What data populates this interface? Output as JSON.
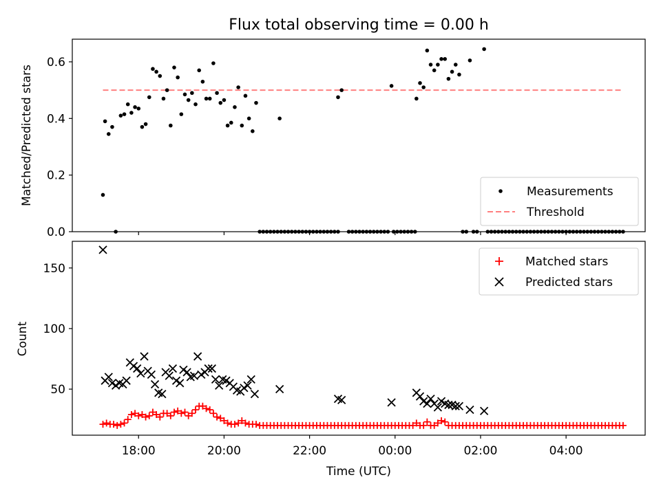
{
  "chart_data": [
    {
      "type": "scatter",
      "title": "Flux total observing time = 0.00 h",
      "xlabel": "",
      "ylabel": "Matched/Predicted stars",
      "xlim": [
        "16:27",
        "05:51"
      ],
      "ylim": [
        0,
        0.68
      ],
      "xticks": [
        "18:00",
        "20:00",
        "22:00",
        "00:00",
        "02:00",
        "04:00"
      ],
      "xtick_labels_shown": false,
      "yticks": [
        "0.0",
        "0.2",
        "0.4",
        "0.6"
      ],
      "grid": false,
      "legend": {
        "position": "lower right",
        "entries": [
          "Measurements",
          "Threshold"
        ]
      },
      "threshold": {
        "name": "Threshold",
        "value": 0.5,
        "color": "#ff7f7f",
        "style": "dashed",
        "x_start": "17:10",
        "x_end": "05:20"
      },
      "series": [
        {
          "name": "Measurements",
          "marker": "dot",
          "color": "#000000",
          "points": [
            [
              "17:10",
              0.13
            ],
            [
              "17:13",
              0.39
            ],
            [
              "17:18",
              0.345
            ],
            [
              "17:23",
              0.37
            ],
            [
              "17:28",
              0.0
            ],
            [
              "17:35",
              0.41
            ],
            [
              "17:40",
              0.415
            ],
            [
              "17:45",
              0.45
            ],
            [
              "17:50",
              0.42
            ],
            [
              "17:55",
              0.44
            ],
            [
              "18:00",
              0.435
            ],
            [
              "18:05",
              0.37
            ],
            [
              "18:10",
              0.38
            ],
            [
              "18:15",
              0.475
            ],
            [
              "18:20",
              0.575
            ],
            [
              "18:25",
              0.565
            ],
            [
              "18:30",
              0.55
            ],
            [
              "18:35",
              0.47
            ],
            [
              "18:40",
              0.5
            ],
            [
              "18:45",
              0.375
            ],
            [
              "18:50",
              0.58
            ],
            [
              "18:55",
              0.545
            ],
            [
              "19:00",
              0.415
            ],
            [
              "19:05",
              0.485
            ],
            [
              "19:10",
              0.465
            ],
            [
              "19:15",
              0.49
            ],
            [
              "19:20",
              0.45
            ],
            [
              "19:25",
              0.57
            ],
            [
              "19:30",
              0.53
            ],
            [
              "19:35",
              0.47
            ],
            [
              "19:40",
              0.47
            ],
            [
              "19:45",
              0.595
            ],
            [
              "19:50",
              0.49
            ],
            [
              "19:55",
              0.455
            ],
            [
              "20:00",
              0.465
            ],
            [
              "20:05",
              0.375
            ],
            [
              "20:10",
              0.385
            ],
            [
              "20:15",
              0.44
            ],
            [
              "20:20",
              0.51
            ],
            [
              "20:25",
              0.375
            ],
            [
              "20:30",
              0.48
            ],
            [
              "20:35",
              0.4
            ],
            [
              "20:40",
              0.355
            ],
            [
              "20:45",
              0.455
            ],
            [
              "21:18",
              0.4
            ],
            [
              "22:40",
              0.475
            ],
            [
              "22:45",
              0.5
            ],
            [
              "23:55",
              0.515
            ],
            [
              "00:30",
              0.47
            ],
            [
              "00:35",
              0.525
            ],
            [
              "00:40",
              0.51
            ],
            [
              "00:45",
              0.64
            ],
            [
              "00:50",
              0.59
            ],
            [
              "00:55",
              0.57
            ],
            [
              "01:00",
              0.59
            ],
            [
              "01:05",
              0.61
            ],
            [
              "01:10",
              0.61
            ],
            [
              "01:15",
              0.54
            ],
            [
              "01:20",
              0.565
            ],
            [
              "01:25",
              0.59
            ],
            [
              "01:30",
              0.555
            ],
            [
              "01:45",
              0.605
            ],
            [
              "02:05",
              0.645
            ]
          ],
          "zero_runs": [
            [
              "20:50",
              "22:40",
              5
            ],
            [
              "22:55",
              "23:50",
              5
            ],
            [
              "23:58",
              "00:30",
              5
            ],
            [
              "01:35",
              "01:40",
              5
            ],
            [
              "01:50",
              "01:55",
              5
            ],
            [
              "02:10",
              "05:20",
              5
            ]
          ]
        }
      ]
    },
    {
      "type": "scatter",
      "title": "",
      "xlabel": "Time (UTC)",
      "ylabel": "Count",
      "xlim": [
        "16:27",
        "05:51"
      ],
      "ylim": [
        12,
        172
      ],
      "xticks": [
        "18:00",
        "20:00",
        "22:00",
        "00:00",
        "02:00",
        "04:00"
      ],
      "yticks": [
        "50",
        "100",
        "150"
      ],
      "grid": false,
      "legend": {
        "position": "upper right",
        "entries": [
          "Matched stars",
          "Predicted stars"
        ]
      },
      "series": [
        {
          "name": "Matched stars",
          "marker": "plus",
          "color": "#ff0000",
          "points": [
            [
              "17:10",
              21
            ],
            [
              "17:15",
              22
            ],
            [
              "17:20",
              21
            ],
            [
              "17:25",
              21
            ],
            [
              "17:30",
              20
            ],
            [
              "17:35",
              21
            ],
            [
              "17:40",
              22
            ],
            [
              "17:45",
              25
            ],
            [
              "17:50",
              29
            ],
            [
              "17:55",
              30
            ],
            [
              "18:00",
              28
            ],
            [
              "18:05",
              29
            ],
            [
              "18:10",
              27
            ],
            [
              "18:15",
              28
            ],
            [
              "18:20",
              31
            ],
            [
              "18:25",
              29
            ],
            [
              "18:30",
              27
            ],
            [
              "18:35",
              30
            ],
            [
              "18:40",
              30
            ],
            [
              "18:45",
              28
            ],
            [
              "18:50",
              31
            ],
            [
              "18:55",
              32
            ],
            [
              "19:00",
              30
            ],
            [
              "19:05",
              31
            ],
            [
              "19:10",
              28
            ],
            [
              "19:15",
              30
            ],
            [
              "19:20",
              33
            ],
            [
              "19:25",
              36
            ],
            [
              "19:30",
              36
            ],
            [
              "19:35",
              34
            ],
            [
              "19:40",
              33
            ],
            [
              "19:45",
              30
            ],
            [
              "19:50",
              27
            ],
            [
              "19:55",
              26
            ],
            [
              "20:00",
              24
            ],
            [
              "20:05",
              22
            ],
            [
              "20:10",
              21
            ],
            [
              "20:15",
              21
            ],
            [
              "20:20",
              22
            ],
            [
              "20:25",
              24
            ],
            [
              "20:30",
              22
            ],
            [
              "20:35",
              21
            ],
            [
              "20:40",
              21
            ],
            [
              "20:45",
              21
            ]
          ],
          "runs": [
            [
              "20:50",
              "05:20",
              5,
              20
            ]
          ],
          "overrides": [
            [
              "00:30",
              22
            ],
            [
              "00:45",
              23
            ],
            [
              "01:00",
              22
            ],
            [
              "01:05",
              24
            ],
            [
              "01:10",
              23
            ]
          ]
        },
        {
          "name": "Predicted stars",
          "marker": "x",
          "color": "#000000",
          "points": [
            [
              "17:10",
              165
            ],
            [
              "17:13",
              57
            ],
            [
              "17:18",
              60
            ],
            [
              "17:23",
              55
            ],
            [
              "17:28",
              53
            ],
            [
              "17:33",
              55
            ],
            [
              "17:38",
              54
            ],
            [
              "17:43",
              57
            ],
            [
              "17:48",
              72
            ],
            [
              "17:53",
              69
            ],
            [
              "17:58",
              67
            ],
            [
              "18:03",
              63
            ],
            [
              "18:08",
              77
            ],
            [
              "18:13",
              65
            ],
            [
              "18:18",
              62
            ],
            [
              "18:23",
              54
            ],
            [
              "18:28",
              47
            ],
            [
              "18:33",
              46
            ],
            [
              "18:38",
              64
            ],
            [
              "18:43",
              61
            ],
            [
              "18:48",
              67
            ],
            [
              "18:53",
              57
            ],
            [
              "18:58",
              55
            ],
            [
              "19:03",
              66
            ],
            [
              "19:08",
              64
            ],
            [
              "19:13",
              60
            ],
            [
              "19:18",
              61
            ],
            [
              "19:23",
              77
            ],
            [
              "19:28",
              62
            ],
            [
              "19:33",
              64
            ],
            [
              "19:38",
              67
            ],
            [
              "19:43",
              67
            ],
            [
              "19:48",
              58
            ],
            [
              "19:53",
              53
            ],
            [
              "19:58",
              58
            ],
            [
              "20:03",
              57
            ],
            [
              "20:08",
              55
            ],
            [
              "20:13",
              52
            ],
            [
              "20:18",
              49
            ],
            [
              "20:23",
              48
            ],
            [
              "20:28",
              51
            ],
            [
              "20:33",
              53
            ],
            [
              "20:38",
              58
            ],
            [
              "20:43",
              46
            ],
            [
              "21:18",
              50
            ],
            [
              "22:40",
              42
            ],
            [
              "22:45",
              41
            ],
            [
              "23:55",
              39
            ],
            [
              "00:30",
              47
            ],
            [
              "00:35",
              44
            ],
            [
              "00:40",
              40
            ],
            [
              "00:45",
              38
            ],
            [
              "00:50",
              42
            ],
            [
              "00:55",
              38
            ],
            [
              "01:00",
              35
            ],
            [
              "01:05",
              40
            ],
            [
              "01:10",
              38
            ],
            [
              "01:15",
              37
            ],
            [
              "01:20",
              37
            ],
            [
              "01:25",
              36
            ],
            [
              "01:30",
              36
            ],
            [
              "01:45",
              33
            ],
            [
              "02:05",
              32
            ]
          ]
        }
      ]
    }
  ]
}
